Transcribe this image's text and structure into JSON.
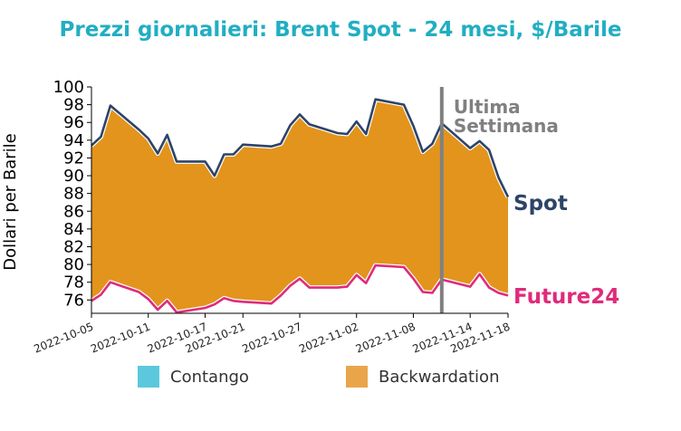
{
  "chart_data": {
    "type": "area",
    "title": "Prezzi giornalieri: Brent Spot - 24 mesi, $/Barile",
    "ylabel": "Dollari per Barile",
    "xlabel": "",
    "ylim": [
      74.5,
      100
    ],
    "yticks": [
      76,
      78,
      80,
      82,
      84,
      86,
      88,
      90,
      92,
      94,
      96,
      98,
      100
    ],
    "xticks": [
      "2022-10-05",
      "2022-10-11",
      "2022-10-17",
      "2022-10-21",
      "2022-10-27",
      "2022-11-02",
      "2022-11-08",
      "2022-11-14",
      "2022-11-18"
    ],
    "grid": false,
    "series": [
      {
        "name": "Spot",
        "color": "#2d4468",
        "points": [
          [
            "2022-10-05",
            93.4
          ],
          [
            "2022-10-06",
            94.4
          ],
          [
            "2022-10-07",
            97.9
          ],
          [
            "2022-10-10",
            95.2
          ],
          [
            "2022-10-11",
            94.2
          ],
          [
            "2022-10-12",
            92.5
          ],
          [
            "2022-10-13",
            94.6
          ],
          [
            "2022-10-14",
            91.6
          ],
          [
            "2022-10-17",
            91.6
          ],
          [
            "2022-10-18",
            90.0
          ],
          [
            "2022-10-19",
            92.4
          ],
          [
            "2022-10-20",
            92.4
          ],
          [
            "2022-10-21",
            93.5
          ],
          [
            "2022-10-24",
            93.3
          ],
          [
            "2022-10-25",
            93.6
          ],
          [
            "2022-10-26",
            95.7
          ],
          [
            "2022-10-27",
            96.9
          ],
          [
            "2022-10-28",
            95.8
          ],
          [
            "2022-10-31",
            94.8
          ],
          [
            "2022-11-01",
            94.7
          ],
          [
            "2022-11-02",
            96.1
          ],
          [
            "2022-11-03",
            94.7
          ],
          [
            "2022-11-04",
            98.6
          ],
          [
            "2022-11-07",
            98.0
          ],
          [
            "2022-11-08",
            95.6
          ],
          [
            "2022-11-09",
            92.7
          ],
          [
            "2022-11-10",
            93.6
          ],
          [
            "2022-11-11",
            95.9
          ],
          [
            "2022-11-14",
            93.1
          ],
          [
            "2022-11-15",
            93.9
          ],
          [
            "2022-11-16",
            92.9
          ],
          [
            "2022-11-17",
            89.8
          ],
          [
            "2022-11-18",
            87.6
          ]
        ]
      },
      {
        "name": "Future24",
        "color": "#e02a7a",
        "points": [
          [
            "2022-10-05",
            75.9
          ],
          [
            "2022-10-06",
            76.6
          ],
          [
            "2022-10-07",
            78.0
          ],
          [
            "2022-10-10",
            76.9
          ],
          [
            "2022-10-11",
            76.1
          ],
          [
            "2022-10-12",
            74.9
          ],
          [
            "2022-10-13",
            75.9
          ],
          [
            "2022-10-14",
            74.6
          ],
          [
            "2022-10-17",
            75.1
          ],
          [
            "2022-10-18",
            75.5
          ],
          [
            "2022-10-19",
            76.2
          ],
          [
            "2022-10-20",
            75.9
          ],
          [
            "2022-10-21",
            75.8
          ],
          [
            "2022-10-24",
            75.6
          ],
          [
            "2022-10-25",
            76.5
          ],
          [
            "2022-10-26",
            77.6
          ],
          [
            "2022-10-27",
            78.4
          ],
          [
            "2022-10-28",
            77.4
          ],
          [
            "2022-10-31",
            77.4
          ],
          [
            "2022-11-01",
            77.5
          ],
          [
            "2022-11-02",
            78.8
          ],
          [
            "2022-11-03",
            77.9
          ],
          [
            "2022-11-04",
            79.9
          ],
          [
            "2022-11-07",
            79.7
          ],
          [
            "2022-11-08",
            78.4
          ],
          [
            "2022-11-09",
            76.9
          ],
          [
            "2022-11-10",
            76.8
          ],
          [
            "2022-11-11",
            78.3
          ],
          [
            "2022-11-14",
            77.5
          ],
          [
            "2022-11-15",
            78.9
          ],
          [
            "2022-11-16",
            77.4
          ],
          [
            "2022-11-17",
            76.8
          ],
          [
            "2022-11-18",
            76.5
          ]
        ]
      }
    ],
    "fill_between": {
      "contango": {
        "label": "Contango",
        "color": "#5bc8dd"
      },
      "backwardation": {
        "label": "Backwardation",
        "color": "#e3941c",
        "legend_color": "#eaa54b"
      }
    },
    "annotation": {
      "lines": [
        "Ultima",
        "Settimana"
      ],
      "x": "2022-11-11",
      "color": "#808080"
    }
  }
}
